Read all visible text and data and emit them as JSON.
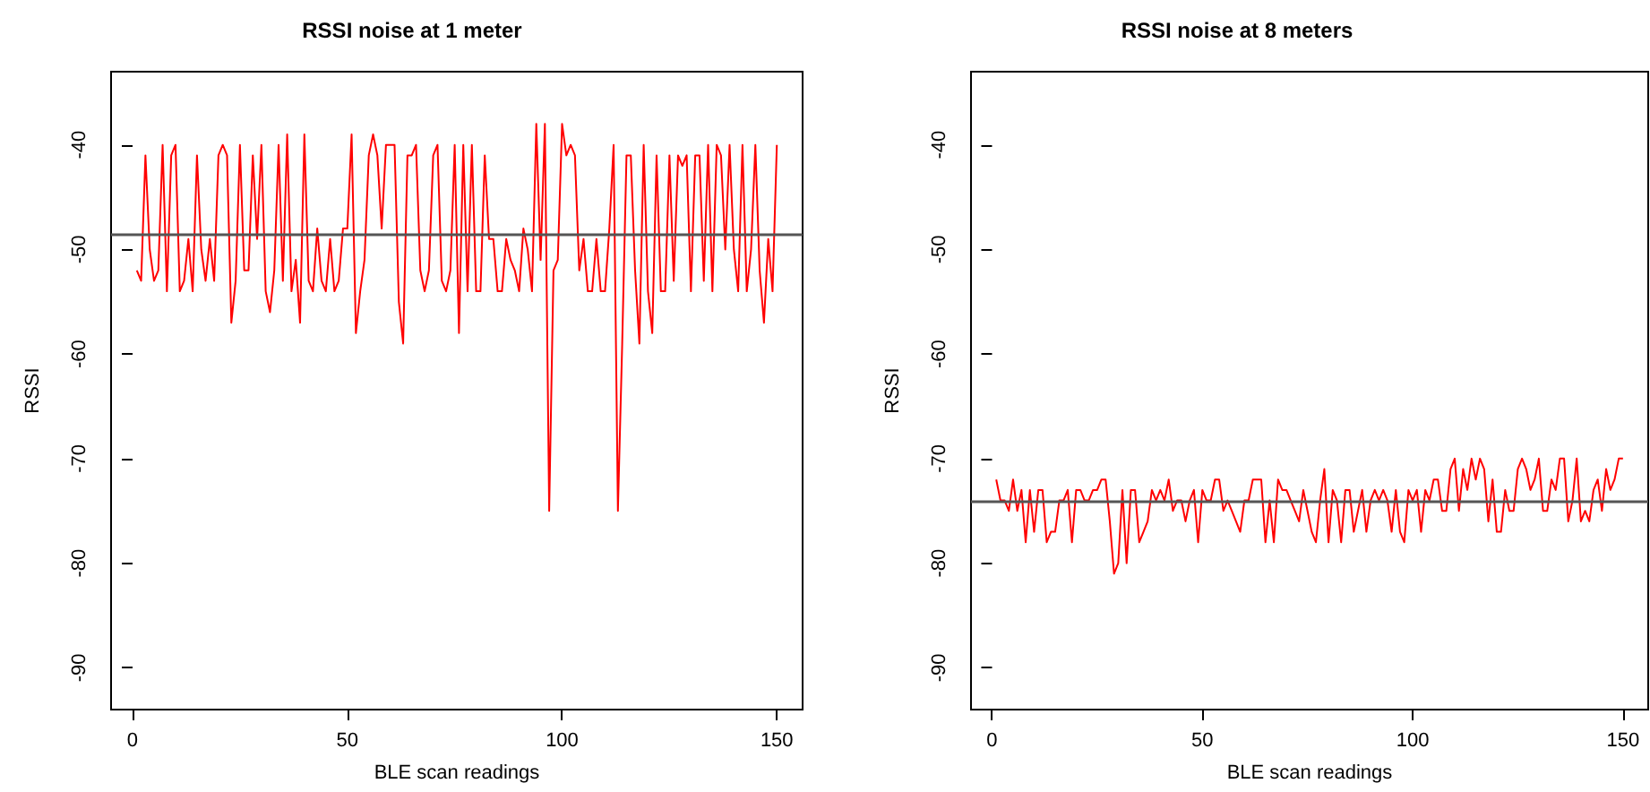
{
  "chart_data": [
    {
      "type": "line",
      "title": "RSSI noise at 1 meter",
      "xlabel": "BLE scan readings",
      "ylabel": "RSSI",
      "xlim": [
        -5,
        156
      ],
      "ylim": [
        -94,
        -33
      ],
      "xticks": [
        0,
        50,
        100,
        150
      ],
      "yticks": [
        -90,
        -80,
        -70,
        -60,
        -50,
        -40
      ],
      "grid": false,
      "marker": "none",
      "line_style": "solid",
      "x": [
        1,
        2,
        3,
        4,
        5,
        6,
        7,
        8,
        9,
        10,
        11,
        12,
        13,
        14,
        15,
        16,
        17,
        18,
        19,
        20,
        21,
        22,
        23,
        24,
        25,
        26,
        27,
        28,
        29,
        30,
        31,
        32,
        33,
        34,
        35,
        36,
        37,
        38,
        39,
        40,
        41,
        42,
        43,
        44,
        45,
        46,
        47,
        48,
        49,
        50,
        51,
        52,
        53,
        54,
        55,
        56,
        57,
        58,
        59,
        60,
        61,
        62,
        63,
        64,
        65,
        66,
        67,
        68,
        69,
        70,
        71,
        72,
        73,
        74,
        75,
        76,
        77,
        78,
        79,
        80,
        81,
        82,
        83,
        84,
        85,
        86,
        87,
        88,
        89,
        90,
        91,
        92,
        93,
        94,
        95,
        96,
        97,
        98,
        99,
        100,
        101,
        102,
        103,
        104,
        105,
        106,
        107,
        108,
        109,
        110,
        111,
        112,
        113,
        114,
        115,
        116,
        117,
        118,
        119,
        120,
        121,
        122,
        123,
        124,
        125,
        126,
        127,
        128,
        129,
        130,
        131,
        132,
        133,
        134,
        135,
        136,
        137,
        138,
        139,
        140,
        141,
        142,
        143,
        144,
        145,
        146,
        147,
        148,
        149,
        150
      ],
      "ref_lines": [
        {
          "axis": "y",
          "value": -48.6,
          "color": "#555555"
        }
      ],
      "series": [
        {
          "color": "#ff0000",
          "values": [
            -52,
            -53,
            -41,
            -50,
            -53,
            -52,
            -40,
            -54,
            -41,
            -40,
            -54,
            -53,
            -49,
            -54,
            -41,
            -50,
            -53,
            -49,
            -53,
            -41,
            -40,
            -41,
            -57,
            -53,
            -40,
            -52,
            -52,
            -41,
            -49,
            -40,
            -54,
            -56,
            -52,
            -40,
            -53,
            -39,
            -54,
            -51,
            -57,
            -39,
            -53,
            -54,
            -48,
            -53,
            -54,
            -49,
            -54,
            -53,
            -48,
            -48,
            -39,
            -58,
            -54,
            -51,
            -41,
            -39,
            -41,
            -48,
            -40,
            -40,
            -40,
            -55,
            -59,
            -41,
            -41,
            -40,
            -52,
            -54,
            -52,
            -41,
            -40,
            -53,
            -54,
            -52,
            -40,
            -58,
            -40,
            -54,
            -40,
            -54,
            -54,
            -41,
            -49,
            -49,
            -54,
            -54,
            -49,
            -51,
            -52,
            -54,
            -48,
            -50,
            -54,
            -38,
            -51,
            -38,
            -75,
            -52,
            -51,
            -38,
            -41,
            -40,
            -41,
            -52,
            -49,
            -54,
            -54,
            -49,
            -54,
            -54,
            -48,
            -40,
            -75,
            -59,
            -41,
            -41,
            -52,
            -59,
            -40,
            -54,
            -58,
            -41,
            -54,
            -54,
            -41,
            -53,
            -41,
            -42,
            -41,
            -54,
            -41,
            -41,
            -53,
            -40,
            -54,
            -40,
            -41,
            -50,
            -40,
            -50,
            -54,
            -40,
            -54,
            -50,
            -40,
            -52,
            -57,
            -49,
            -54,
            -40
          ]
        }
      ]
    },
    {
      "type": "line",
      "title": "RSSI noise at 8 meters",
      "xlabel": "BLE scan readings",
      "ylabel": "RSSI",
      "xlim": [
        -5,
        156
      ],
      "ylim": [
        -94,
        -33
      ],
      "xticks": [
        0,
        50,
        100,
        150
      ],
      "yticks": [
        -90,
        -80,
        -70,
        -60,
        -50,
        -40
      ],
      "grid": false,
      "marker": "none",
      "line_style": "solid",
      "x": [
        1,
        2,
        3,
        4,
        5,
        6,
        7,
        8,
        9,
        10,
        11,
        12,
        13,
        14,
        15,
        16,
        17,
        18,
        19,
        20,
        21,
        22,
        23,
        24,
        25,
        26,
        27,
        28,
        29,
        30,
        31,
        32,
        33,
        34,
        35,
        36,
        37,
        38,
        39,
        40,
        41,
        42,
        43,
        44,
        45,
        46,
        47,
        48,
        49,
        50,
        51,
        52,
        53,
        54,
        55,
        56,
        57,
        58,
        59,
        60,
        61,
        62,
        63,
        64,
        65,
        66,
        67,
        68,
        69,
        70,
        71,
        72,
        73,
        74,
        75,
        76,
        77,
        78,
        79,
        80,
        81,
        82,
        83,
        84,
        85,
        86,
        87,
        88,
        89,
        90,
        91,
        92,
        93,
        94,
        95,
        96,
        97,
        98,
        99,
        100,
        101,
        102,
        103,
        104,
        105,
        106,
        107,
        108,
        109,
        110,
        111,
        112,
        113,
        114,
        115,
        116,
        117,
        118,
        119,
        120,
        121,
        122,
        123,
        124,
        125,
        126,
        127,
        128,
        129,
        130,
        131,
        132,
        133,
        134,
        135,
        136,
        137,
        138,
        139,
        140,
        141,
        142,
        143,
        144,
        145,
        146,
        147,
        148,
        149,
        150
      ],
      "ref_lines": [
        {
          "axis": "y",
          "value": -74.1,
          "color": "#555555"
        }
      ],
      "series": [
        {
          "color": "#ff0000",
          "values": [
            -72,
            -74,
            -74,
            -75,
            -72,
            -75,
            -73,
            -78,
            -73,
            -77,
            -73,
            -73,
            -78,
            -77,
            -77,
            -74,
            -74,
            -73,
            -78,
            -73,
            -73,
            -74,
            -74,
            -73,
            -73,
            -72,
            -72,
            -76,
            -81,
            -80,
            -73,
            -80,
            -73,
            -73,
            -78,
            -77,
            -76,
            -73,
            -74,
            -73,
            -74,
            -72,
            -75,
            -74,
            -74,
            -76,
            -74,
            -73,
            -78,
            -73,
            -74,
            -74,
            -72,
            -72,
            -75,
            -74,
            -75,
            -76,
            -77,
            -74,
            -74,
            -72,
            -72,
            -72,
            -78,
            -74,
            -78,
            -72,
            -73,
            -73,
            -74,
            -75,
            -76,
            -73,
            -75,
            -77,
            -78,
            -74,
            -71,
            -78,
            -73,
            -74,
            -78,
            -73,
            -73,
            -77,
            -75,
            -73,
            -77,
            -74,
            -73,
            -74,
            -73,
            -74,
            -77,
            -73,
            -77,
            -78,
            -73,
            -74,
            -73,
            -77,
            -73,
            -74,
            -72,
            -72,
            -75,
            -75,
            -71,
            -70,
            -75,
            -71,
            -73,
            -70,
            -72,
            -70,
            -71,
            -76,
            -72,
            -77,
            -77,
            -73,
            -75,
            -75,
            -71,
            -70,
            -71,
            -73,
            -72,
            -70,
            -75,
            -75,
            -72,
            -73,
            -70,
            -70,
            -76,
            -74,
            -70,
            -76,
            -75,
            -76,
            -73,
            -72,
            -75,
            -71,
            -73,
            -72,
            -70,
            -70
          ]
        }
      ]
    }
  ]
}
